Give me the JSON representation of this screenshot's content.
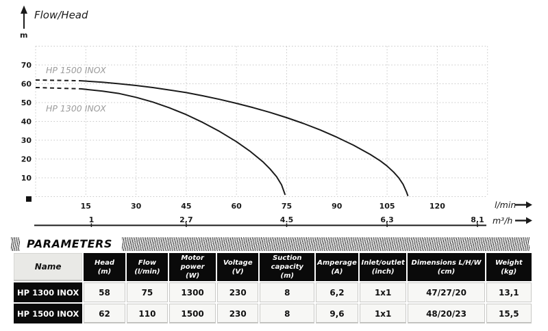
{
  "chart": {
    "title": "Flow/Head",
    "y_axis_unit": "m",
    "x_axis_unit": "l/min",
    "x2_axis_unit": "m³/h",
    "y_ticks": [
      "70",
      "60",
      "50",
      "40",
      "30",
      "20",
      "10"
    ],
    "x_ticks": [
      "15",
      "30",
      "45",
      "60",
      "75",
      "90",
      "105",
      "120"
    ],
    "x2_ticks": [
      "1",
      "2,7",
      "4.5",
      "6,3",
      "8,1"
    ]
  },
  "chart_data": {
    "type": "line",
    "title": "Flow/Head",
    "xlabel": "Flow",
    "x_units": [
      "l/min",
      "m³/h"
    ],
    "ylabel": "Head",
    "y_unit": "m",
    "xlim_lmin": [
      0,
      135
    ],
    "ylim": [
      0,
      80
    ],
    "grid": true,
    "x_ticks_lmin": [
      15,
      30,
      45,
      60,
      75,
      90,
      105,
      120
    ],
    "x_ticks_m3h": [
      1,
      2.7,
      4.5,
      6.3,
      8.1
    ],
    "legend_position": "inline-labels",
    "series": [
      {
        "id": "hp1500",
        "name": "HP 1500 INOX",
        "dashed_until_lmin": 13.5,
        "points_lmin_m": [
          [
            0,
            62
          ],
          [
            13.5,
            61.6
          ],
          [
            20,
            60.8
          ],
          [
            25,
            60
          ],
          [
            30,
            59.1
          ],
          [
            35,
            58
          ],
          [
            40,
            56.7
          ],
          [
            45,
            55.3
          ],
          [
            50,
            53.6
          ],
          [
            55,
            51.7
          ],
          [
            60,
            49.6
          ],
          [
            65,
            47.3
          ],
          [
            70,
            44.8
          ],
          [
            75,
            42
          ],
          [
            80,
            38.9
          ],
          [
            85,
            35.5
          ],
          [
            90,
            31.6
          ],
          [
            95,
            27.3
          ],
          [
            100,
            22.4
          ],
          [
            103,
            19
          ],
          [
            105,
            16.3
          ],
          [
            107,
            13
          ],
          [
            108.5,
            10
          ],
          [
            109.8,
            6.5
          ],
          [
            110.8,
            2.5
          ],
          [
            111.2,
            0.6
          ]
        ]
      },
      {
        "id": "hp1300",
        "name": "HP 1300 INOX",
        "dashed_until_lmin": 13.5,
        "points_lmin_m": [
          [
            0,
            58
          ],
          [
            13.5,
            57.3
          ],
          [
            20,
            56.1
          ],
          [
            25,
            54.8
          ],
          [
            30,
            52.8
          ],
          [
            35,
            50.3
          ],
          [
            40,
            47.2
          ],
          [
            45,
            43.6
          ],
          [
            50,
            39.4
          ],
          [
            55,
            34.6
          ],
          [
            60,
            29.2
          ],
          [
            64,
            24.2
          ],
          [
            68,
            18.4
          ],
          [
            70,
            14.8
          ],
          [
            72,
            10.6
          ],
          [
            73.5,
            6.2
          ],
          [
            74.5,
            1.2
          ]
        ]
      }
    ],
    "colors": {
      "curve": "#1a1a1a",
      "grid": "#c9c9c9",
      "series_label_text": "#9c9c9c"
    }
  },
  "parameters_table": {
    "title": "PARAMETERS",
    "columns": [
      {
        "label": "Name",
        "unit": ""
      },
      {
        "label": "Head",
        "unit": "(m)"
      },
      {
        "label": "Flow",
        "unit": "(l/min)"
      },
      {
        "label": "Motor power",
        "unit": "(W)"
      },
      {
        "label": "Voltage",
        "unit": "(V)"
      },
      {
        "label": "Suction capacity",
        "unit": "(m)"
      },
      {
        "label": "Amperage",
        "unit": "(A)"
      },
      {
        "label": "Inlet/outlet",
        "unit": "(inch)"
      },
      {
        "label": "Dimensions L/H/W",
        "unit": "(cm)"
      },
      {
        "label": "Weight",
        "unit": "(kg)"
      }
    ],
    "rows": [
      {
        "name": "HP 1300 INOX",
        "values": [
          "58",
          "75",
          "1300",
          "230",
          "8",
          "6,2",
          "1x1",
          "47/27/20",
          "13,1"
        ]
      },
      {
        "name": "HP 1500 INOX",
        "values": [
          "62",
          "110",
          "1500",
          "230",
          "8",
          "9,6",
          "1x1",
          "48/20/23",
          "15,5"
        ]
      }
    ]
  }
}
